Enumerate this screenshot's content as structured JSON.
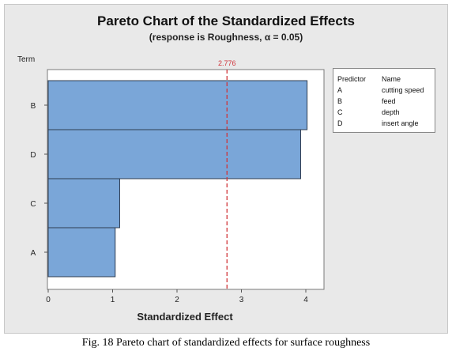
{
  "chart_data": {
    "type": "bar",
    "orientation": "horizontal",
    "title": "Pareto Chart of the Standardized Effects",
    "subtitle": "(response is Roughness, α = 0.05)",
    "xlabel": "Standardized Effect",
    "ylabel": "Term",
    "categories": [
      "B",
      "D",
      "C",
      "A"
    ],
    "values": [
      4.02,
      3.92,
      1.11,
      1.04
    ],
    "xlim": [
      0,
      4.2
    ],
    "xticks": [
      "0",
      "1",
      "2",
      "3",
      "4"
    ],
    "reference_line": {
      "value": 2.776,
      "label": "2.776",
      "color": "#d0343a"
    },
    "bar_color": "#7aa6d8",
    "grid": false,
    "legend_position": "right"
  },
  "legend": {
    "headers": {
      "predictor": "Predictor",
      "name": "Name"
    },
    "rows": [
      {
        "predictor": "A",
        "name": "cutting speed"
      },
      {
        "predictor": "B",
        "name": "feed"
      },
      {
        "predictor": "C",
        "name": "depth"
      },
      {
        "predictor": "D",
        "name": "insert angle"
      }
    ]
  },
  "caption": "Fig. 18 Pareto chart of standardized effects for surface roughness"
}
